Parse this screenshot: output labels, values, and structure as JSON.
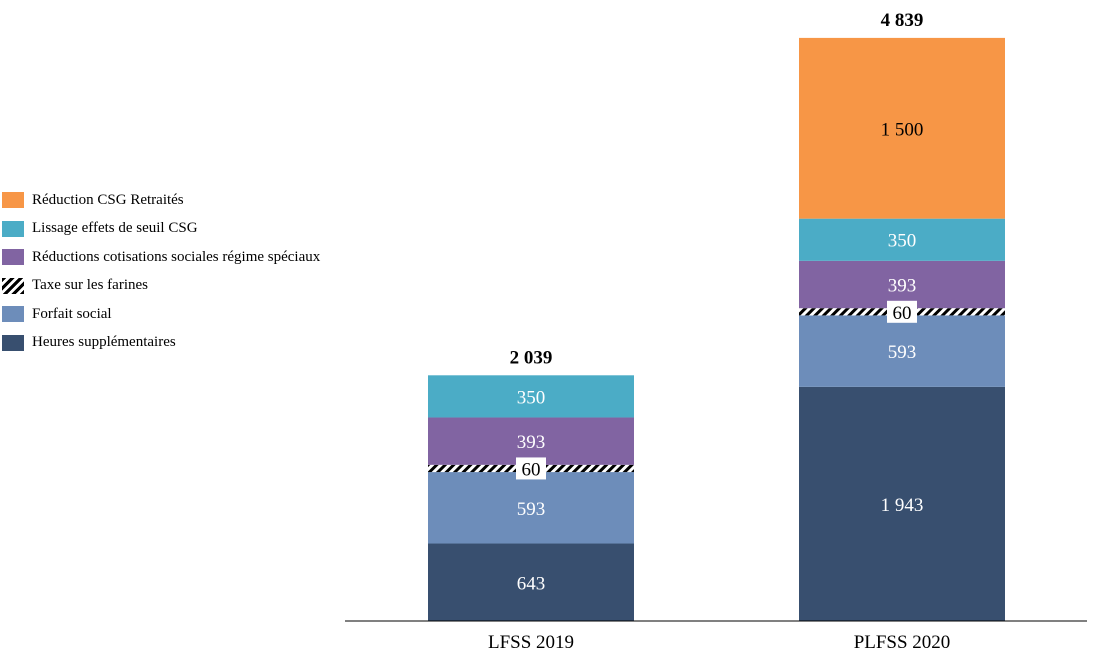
{
  "chart_data": {
    "type": "bar",
    "stacked": true,
    "title": "",
    "xlabel": "",
    "ylabel": "",
    "categories": [
      "LFSS 2019",
      "PLFSS 2020"
    ],
    "totals": [
      "2 039",
      "4 839"
    ],
    "series": [
      {
        "name": "Heures supplémentaires",
        "color": "#384f6f",
        "values": [
          643,
          1943
        ],
        "labels": [
          "643",
          "1 943"
        ],
        "label_color": "#ffffff"
      },
      {
        "name": "Forfait social",
        "color": "#6d8dba",
        "values": [
          593,
          593
        ],
        "labels": [
          "593",
          "593"
        ],
        "label_color": "#ffffff"
      },
      {
        "name": "Taxe sur les farines",
        "color": "hatch",
        "values": [
          60,
          60
        ],
        "labels": [
          "60",
          "60"
        ],
        "label_color": "#000000"
      },
      {
        "name": "Réductions cotisations sociales régime spéciaux",
        "color": "#8164a2",
        "values": [
          393,
          393
        ],
        "labels": [
          "393",
          "393"
        ],
        "label_color": "#ffffff"
      },
      {
        "name": "Lissage effets de seuil CSG",
        "color": "#4bacc6",
        "values": [
          350,
          350
        ],
        "labels": [
          "350",
          "350"
        ],
        "label_color": "#ffffff"
      },
      {
        "name": "Réduction CSG Retraités",
        "color": "#f79646",
        "values": [
          0,
          1500
        ],
        "labels": [
          "",
          "1 500"
        ],
        "label_color": "#000000"
      }
    ],
    "legend": {
      "position": "left",
      "order": [
        {
          "label": "Réduction CSG Retraités",
          "color": "#f79646"
        },
        {
          "label": "Lissage effets de seuil CSG",
          "color": "#4bacc6"
        },
        {
          "label": "Réductions cotisations sociales régime spéciaux",
          "color": "#8164a2"
        },
        {
          "label": "Taxe sur les farines",
          "color": "hatch"
        },
        {
          "label": "Forfait social",
          "color": "#6d8dba"
        },
        {
          "label": "Heures supplémentaires",
          "color": "#384f6f"
        }
      ]
    },
    "grid": false
  }
}
